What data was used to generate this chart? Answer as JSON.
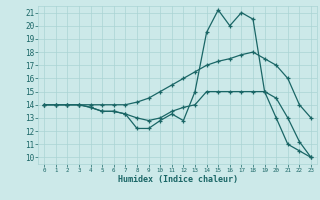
{
  "xlabel": "Humidex (Indice chaleur)",
  "background_color": "#cce9e9",
  "grid_color": "#aad4d4",
  "line_color": "#1a6666",
  "xlim": [
    -0.5,
    23.5
  ],
  "ylim": [
    9.5,
    21.5
  ],
  "xticks": [
    0,
    1,
    2,
    3,
    4,
    5,
    6,
    7,
    8,
    9,
    10,
    11,
    12,
    13,
    14,
    15,
    16,
    17,
    18,
    19,
    20,
    21,
    22,
    23
  ],
  "yticks": [
    10,
    11,
    12,
    13,
    14,
    15,
    16,
    17,
    18,
    19,
    20,
    21
  ],
  "line1_x": [
    0,
    1,
    2,
    3,
    4,
    5,
    6,
    7,
    8,
    9,
    10,
    11,
    12,
    13,
    14,
    15,
    16,
    17,
    18,
    19,
    20,
    21,
    22,
    23
  ],
  "line1_y": [
    14,
    14,
    14,
    14,
    14,
    14,
    14,
    14,
    14.2,
    14.5,
    15,
    15.5,
    16,
    16.5,
    17,
    17.3,
    17.5,
    17.8,
    18,
    17.5,
    17,
    16,
    14,
    13
  ],
  "line2_x": [
    0,
    1,
    2,
    3,
    4,
    5,
    6,
    7,
    8,
    9,
    10,
    11,
    12,
    13,
    14,
    15,
    16,
    17,
    18,
    19,
    20,
    21,
    22,
    23
  ],
  "line2_y": [
    14,
    14,
    14,
    14,
    13.8,
    13.5,
    13.5,
    13.3,
    12.2,
    12.2,
    12.8,
    13.3,
    12.8,
    15,
    19.5,
    21.2,
    20,
    21,
    20.5,
    15,
    13,
    11,
    10.5,
    10
  ],
  "line3_x": [
    0,
    1,
    2,
    3,
    4,
    5,
    6,
    7,
    8,
    9,
    10,
    11,
    12,
    13,
    14,
    15,
    16,
    17,
    18,
    19,
    20,
    21,
    22,
    23
  ],
  "line3_y": [
    14,
    14,
    14,
    14,
    13.8,
    13.5,
    13.5,
    13.3,
    13.0,
    12.8,
    13.0,
    13.5,
    13.8,
    14,
    15,
    15,
    15,
    15,
    15,
    15,
    14.5,
    13,
    11.2,
    10
  ]
}
